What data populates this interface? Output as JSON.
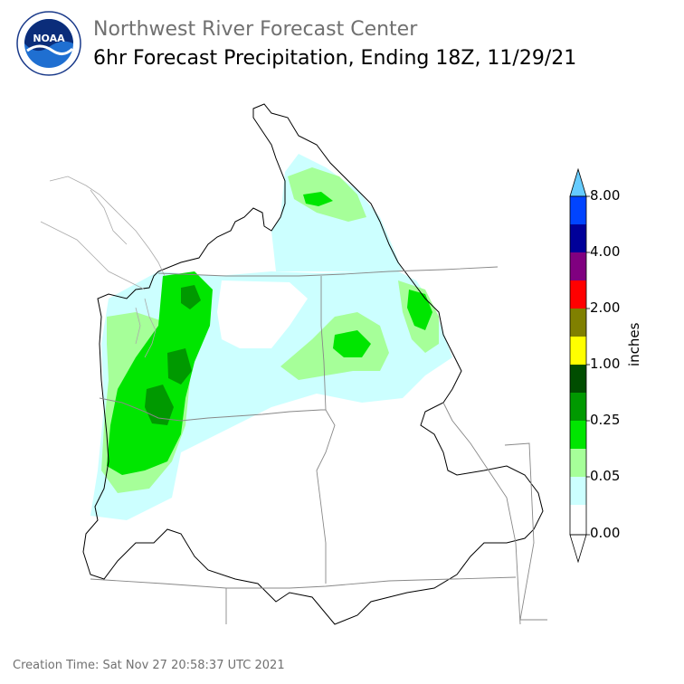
{
  "header": {
    "org_name": "Northwest River Forecast Center",
    "product_title": "6hr Forecast Precipitation, Ending 18Z, 11/29/21"
  },
  "logo": {
    "icon": "noaa-logo-icon",
    "text": "NOAA",
    "ring_text": "NATIONAL OCEANIC AND ATMOSPHERIC ADMINISTRATION · U.S. DEPARTMENT OF COMMERCE"
  },
  "legend": {
    "unit": "inches",
    "tick_labels": [
      "8.00",
      "4.00",
      "2.00",
      "1.00",
      "0.25",
      "0.05",
      "0.00"
    ],
    "colors": {
      "bin_0": "#ffffff",
      "bin_1": "#ccffff",
      "bin_2": "#a6ff99",
      "bin_3": "#00e600",
      "bin_4": "#009900",
      "bin_5": "#004d00",
      "bin_6": "#ffff00",
      "bin_7": "#808000",
      "bin_8": "#ff0000",
      "bin_9": "#800080",
      "bin_10": "#000099",
      "bin_11": "#0044ff",
      "bin_12": "#66ccff"
    }
  },
  "footer": {
    "creation_time": "Creation Time: Sat Nov 27 20:58:37 UTC 2021"
  }
}
